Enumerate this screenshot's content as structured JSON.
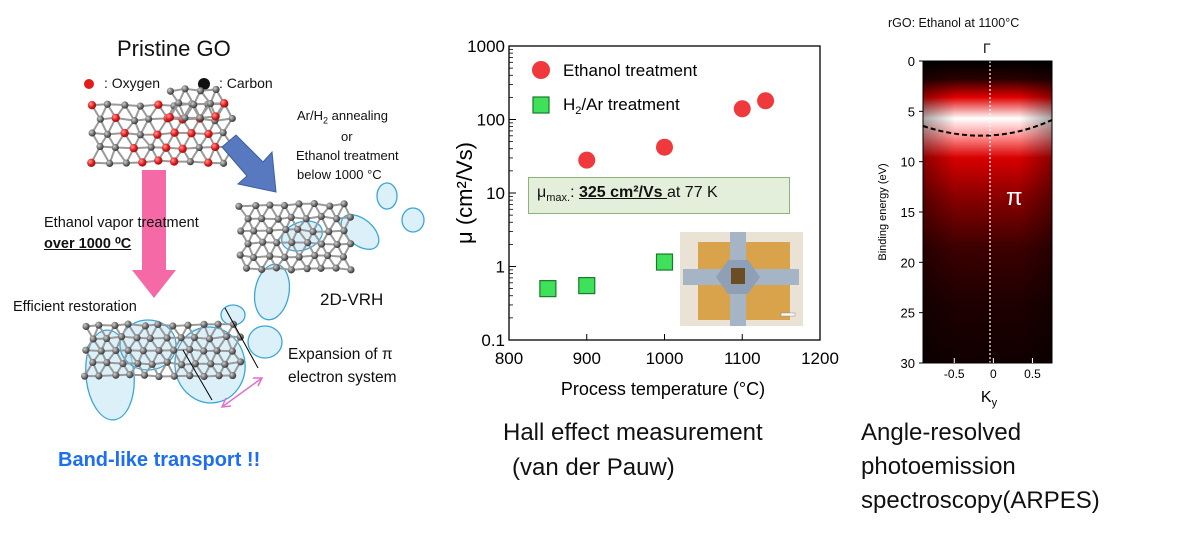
{
  "left": {
    "title": "Pristine GO",
    "legend_oxygen": ": Oxygen",
    "legend_carbon": ": Carbon",
    "anneal_1": "Ar/H",
    "anneal_1_sub": "2",
    "anneal_1_rest": " annealing",
    "anneal_2": "or",
    "anneal_3": "Ethanol treatment",
    "anneal_4": "below 1000 °C",
    "ethanol_1": "Ethanol vapor treatment",
    "ethanol_2": "over 1000 ⁰C",
    "vrh": "2D-VRH",
    "restoration": "Efficient restoration",
    "expansion_1": "Expansion of π",
    "expansion_2": "electron system",
    "band": "Band-like transport !!"
  },
  "middle": {
    "caption_1": "Hall effect measurement",
    "caption_2": "(van der Pauw)",
    "mu_box_prefix": "μ",
    "mu_box_sub": "max.",
    "mu_box_colon": ": ",
    "mu_box_value": "325 cm²/Vs ",
    "mu_box_suffix": "at 77 K"
  },
  "right": {
    "title": "rGO: Ethanol at 1100°C",
    "gamma": "Γ",
    "ylabel": "Binding energy (eV)",
    "xlabel": "K",
    "xlabel_sub": "y",
    "pi": "π",
    "yticks": [
      "0",
      "5",
      "10",
      "15",
      "20",
      "25",
      "30"
    ],
    "xticks": [
      "-0.5",
      "0",
      "0.5"
    ]
  },
  "chart_data": {
    "type": "scatter",
    "xlabel": "Process temperature (°C)",
    "ylabel": "μ  (cm²/Vs)",
    "xlim": [
      800,
      1200
    ],
    "ylim": [
      0.1,
      1000
    ],
    "log_y": true,
    "xticks": [
      "800",
      "900",
      "1000",
      "1100",
      "1200"
    ],
    "yticks": [
      "0.1",
      "1",
      "10",
      "100",
      "1000"
    ],
    "series": [
      {
        "name": "Ethanol treatment",
        "marker": "circle",
        "color": "#f0393c",
        "x": [
          900,
          1000,
          1100,
          1130
        ],
        "y": [
          28,
          42,
          140,
          180
        ]
      },
      {
        "name": "H₂/Ar treatment",
        "marker": "square",
        "color": "#3fe05a",
        "x": [
          850,
          900,
          1000
        ],
        "y": [
          0.5,
          0.55,
          1.15
        ]
      }
    ]
  },
  "colors": {
    "band_text": "#1c6ef2",
    "arrow_pink": "#f56aa6",
    "arrow_blue": "#5878c0",
    "ring": "#3aa6d8"
  }
}
